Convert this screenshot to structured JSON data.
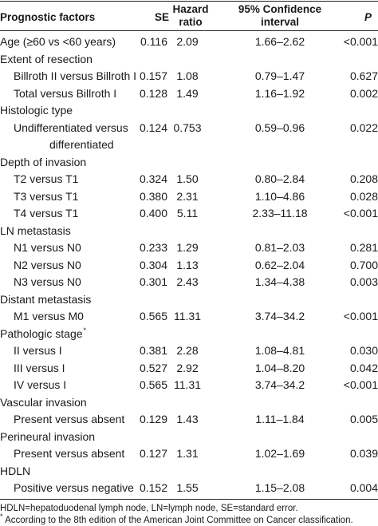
{
  "header": {
    "factor": "Prognostic factors",
    "se": "SE",
    "hr_line1": "Hazard",
    "hr_line2": "ratio",
    "ci_line1": "95% Confidence",
    "ci_line2": "interval",
    "p": "P"
  },
  "rows": [
    {
      "label": "Age (≥60 vs <60 years)",
      "indent": false,
      "se": "0.116",
      "hr": "2.09",
      "ci": "1.66–2.62",
      "p": "<0.001"
    },
    {
      "label": "Extent of resection",
      "indent": false,
      "se": "",
      "hr": "",
      "ci": "",
      "p": ""
    },
    {
      "label": "Billroth II versus Billroth I",
      "indent": true,
      "se": "0.157",
      "hr": "1.08",
      "ci": "0.79–1.47",
      "p": "0.627"
    },
    {
      "label": "Total versus Billroth I",
      "indent": true,
      "se": "0.128",
      "hr": "1.49",
      "ci": "1.16–1.92",
      "p": "0.002"
    },
    {
      "label": "Histologic type",
      "indent": false,
      "se": "",
      "hr": "",
      "ci": "",
      "p": ""
    },
    {
      "label": "Undifferentiated versus",
      "indent": true,
      "se": "0.124",
      "hr": "0.753",
      "ci": "0.59–0.96",
      "p": "0.022"
    },
    {
      "label": "differentiated",
      "indent": true,
      "extra_indent": true,
      "se": "",
      "hr": "",
      "ci": "",
      "p": ""
    },
    {
      "label": "Depth of invasion",
      "indent": false,
      "se": "",
      "hr": "",
      "ci": "",
      "p": ""
    },
    {
      "label": "T2 versus T1",
      "indent": true,
      "se": "0.324",
      "hr": "1.50",
      "ci": "0.80–2.84",
      "p": "0.208"
    },
    {
      "label": "T3 versus T1",
      "indent": true,
      "se": "0.380",
      "hr": "2.31",
      "ci": "1.10–4.86",
      "p": "0.028"
    },
    {
      "label": "T4 versus T1",
      "indent": true,
      "se": "0.400",
      "hr": "5.11",
      "ci": "2.33–11.18",
      "p": "<0.001"
    },
    {
      "label": "LN metastasis",
      "indent": false,
      "se": "",
      "hr": "",
      "ci": "",
      "p": ""
    },
    {
      "label": "N1 versus N0",
      "indent": true,
      "se": "0.233",
      "hr": "1.29",
      "ci": "0.81–2.03",
      "p": "0.281"
    },
    {
      "label": "N2 versus N0",
      "indent": true,
      "se": "0.304",
      "hr": "1.13",
      "ci": "0.62–2.04",
      "p": "0.700"
    },
    {
      "label": "N3 versus N0",
      "indent": true,
      "se": "0.301",
      "hr": "2.43",
      "ci": "1.34–4.38",
      "p": "0.003"
    },
    {
      "label": "Distant metastasis",
      "indent": false,
      "se": "",
      "hr": "",
      "ci": "",
      "p": ""
    },
    {
      "label": "M1 versus M0",
      "indent": true,
      "se": "0.565",
      "hr": "11.31",
      "ci": "3.74–34.2",
      "p": "<0.001"
    },
    {
      "label": "Pathologic stage",
      "sup": "*",
      "indent": false,
      "se": "",
      "hr": "",
      "ci": "",
      "p": ""
    },
    {
      "label": "II versus I",
      "indent": true,
      "se": "0.381",
      "hr": "2.28",
      "ci": "1.08–4.81",
      "p": "0.030"
    },
    {
      "label": "III versus I",
      "indent": true,
      "se": "0.527",
      "hr": "2.92",
      "ci": "1.04–8.20",
      "p": "0.042"
    },
    {
      "label": "IV versus I",
      "indent": true,
      "se": "0.565",
      "hr": "11.31",
      "ci": "3.74–34.2",
      "p": "<0.001"
    },
    {
      "label": "Vascular invasion",
      "indent": false,
      "se": "",
      "hr": "",
      "ci": "",
      "p": ""
    },
    {
      "label": "Present versus absent",
      "indent": true,
      "se": "0.129",
      "hr": "1.43",
      "ci": "1.11–1.84",
      "p": "0.005"
    },
    {
      "label": "Perineural invasion",
      "indent": false,
      "se": "",
      "hr": "",
      "ci": "",
      "p": ""
    },
    {
      "label": "Present versus absent",
      "indent": true,
      "se": "0.127",
      "hr": "1.31",
      "ci": "1.02–1.69",
      "p": "0.039"
    },
    {
      "label": "HDLN",
      "indent": false,
      "se": "",
      "hr": "",
      "ci": "",
      "p": ""
    },
    {
      "label": "Positive versus negative",
      "indent": true,
      "se": "0.152",
      "hr": "1.55",
      "ci": "1.15–2.08",
      "p": "0.004"
    }
  ],
  "footnotes": {
    "abbrev": "HDLN=hepatoduodenal lymph node, LN=lymph node, SE=standard error.",
    "star_mark": "*",
    "star_text": "According to the 8th edition of the American Joint Committee on Cancer classification."
  }
}
